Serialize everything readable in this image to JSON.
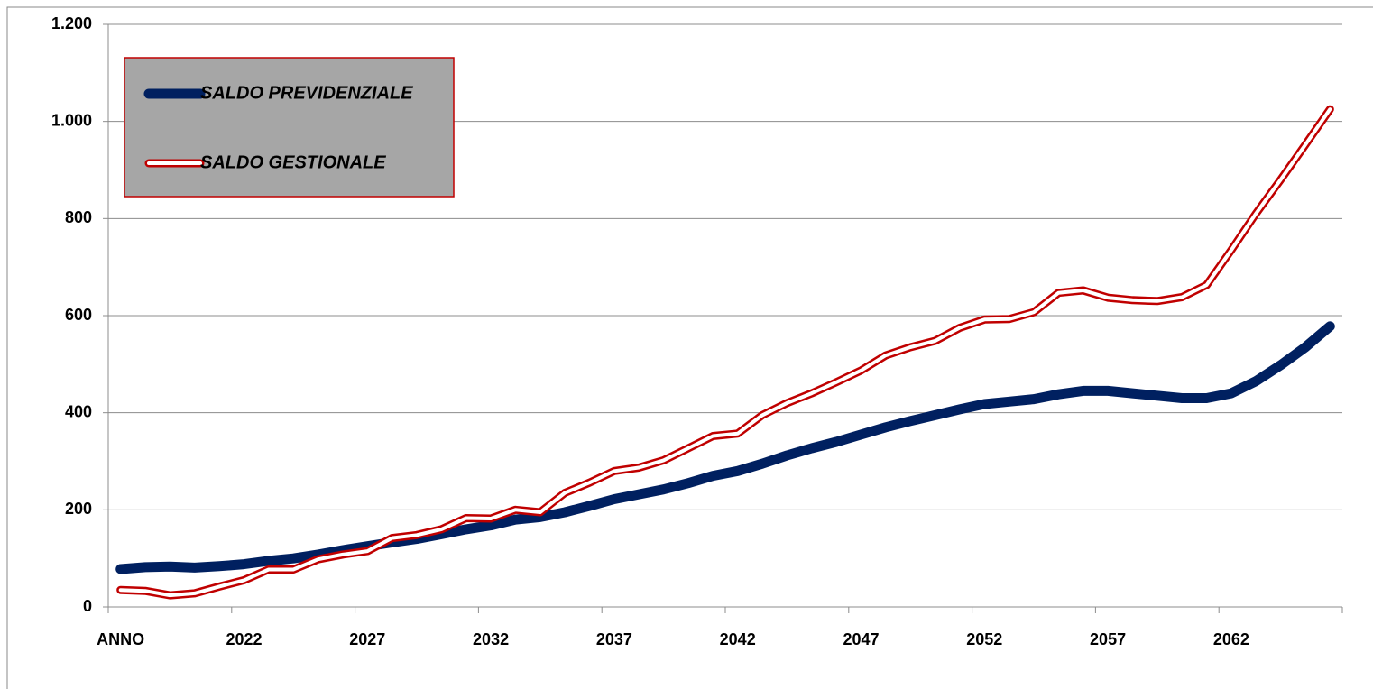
{
  "chart_data": {
    "type": "line",
    "categories": [
      "ANNO",
      null,
      null,
      null,
      null,
      "2022",
      null,
      null,
      null,
      null,
      "2027",
      null,
      null,
      null,
      null,
      "2032",
      null,
      null,
      null,
      null,
      "2037",
      null,
      null,
      null,
      null,
      "2042",
      null,
      null,
      null,
      null,
      "2047",
      null,
      null,
      null,
      null,
      "2052",
      null,
      null,
      null,
      null,
      "2057",
      null,
      null,
      null,
      null,
      "2062",
      null,
      null,
      null,
      null
    ],
    "series": [
      {
        "name": "SALDO PREVIDENZIALE",
        "color": "#002060",
        "values": [
          78,
          82,
          83,
          81,
          84,
          88,
          95,
          100,
          108,
          117,
          125,
          133,
          140,
          150,
          160,
          168,
          180,
          185,
          195,
          208,
          222,
          232,
          242,
          255,
          270,
          280,
          295,
          312,
          327,
          340,
          355,
          370,
          383,
          395,
          407,
          418,
          423,
          428,
          438,
          445,
          445,
          440,
          435,
          430,
          430,
          440,
          465,
          498,
          535,
          578
        ]
      },
      {
        "name": "SALDO GESTIONALE",
        "color": "#c00000",
        "values": [
          35,
          33,
          24,
          28,
          42,
          55,
          77,
          77,
          98,
          108,
          115,
          142,
          148,
          160,
          183,
          182,
          200,
          195,
          235,
          256,
          280,
          287,
          302,
          327,
          352,
          357,
          395,
          420,
          440,
          463,
          487,
          518,
          535,
          548,
          575,
          592,
          593,
          607,
          647,
          652,
          637,
          632,
          630,
          638,
          663,
          735,
          810,
          880,
          952,
          1025
        ]
      }
    ],
    "ylim": [
      0,
      1200
    ],
    "yticks": [
      0,
      200,
      400,
      600,
      800,
      {
        "value": 1000,
        "label": "1.000"
      },
      {
        "value": 1200,
        "label": "1.200"
      }
    ],
    "grid": true,
    "legend": "upper left"
  }
}
